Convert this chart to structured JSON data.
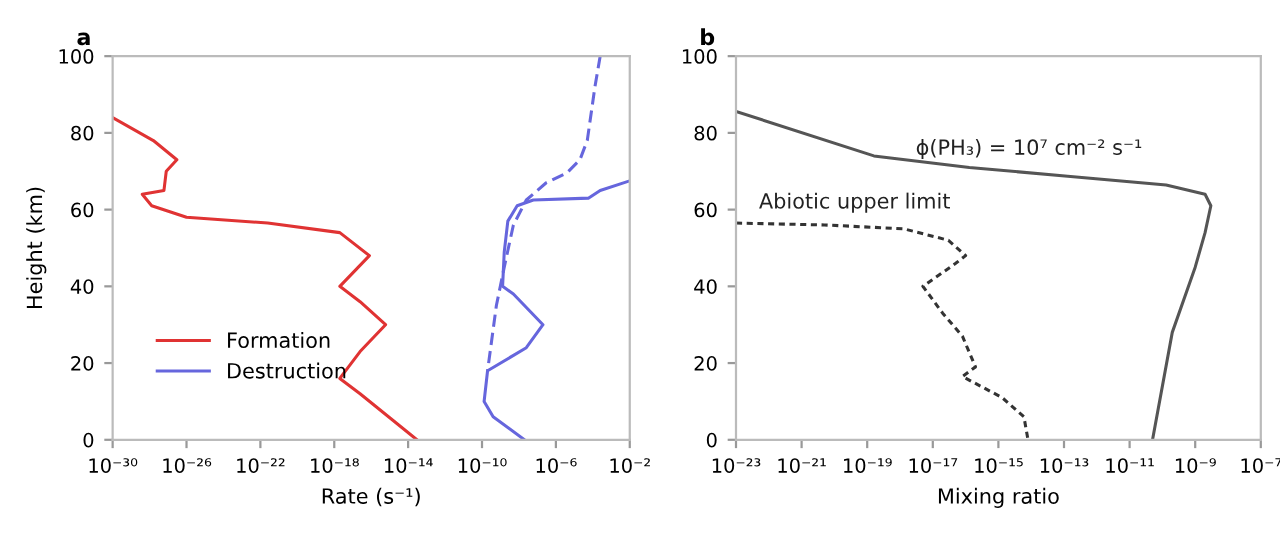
{
  "chart_data": [
    {
      "type": "line",
      "title": "a",
      "xlabel": "Rate (s⁻¹)",
      "ylabel": "Height (km)",
      "log": "x",
      "xlim": [
        1e-30,
        0.01
      ],
      "xticks": [
        {
          "value": 1e-30,
          "label": "10⁻³⁰"
        },
        {
          "value": 1e-26,
          "label": "10⁻²⁶"
        },
        {
          "value": 1e-22,
          "label": "10⁻²²"
        },
        {
          "value": 1e-18,
          "label": "10⁻¹⁸"
        },
        {
          "value": 1e-14,
          "label": "10⁻¹⁴"
        },
        {
          "value": 1e-10,
          "label": "10⁻¹⁰"
        },
        {
          "value": 1e-06,
          "label": "10⁻⁶"
        },
        {
          "value": 0.01,
          "label": "10⁻²"
        }
      ],
      "ylim": [
        0,
        100
      ],
      "yticks": [
        0,
        20,
        40,
        60,
        80,
        100
      ],
      "grid": false,
      "legend": "bottom left",
      "series": [
        {
          "name": "Formation",
          "color": "#e03333",
          "line_style": "solid",
          "x": [
            1e-30,
            1.6e-28,
            3e-27,
            8e-28,
            6e-28,
            4e-29,
            1.3e-28,
            1e-26,
            2.5e-22,
            2e-18,
            8e-17,
            2e-18,
            2.5e-17,
            6e-16,
            2.5e-17,
            2e-18,
            2.5e-17,
            3e-14
          ],
          "values": [
            84,
            78,
            73,
            70,
            65,
            64,
            61,
            58,
            56.5,
            54,
            48,
            40,
            36,
            30,
            23,
            16,
            12,
            0
          ]
        },
        {
          "name": "Destruction",
          "color": "#6666dd",
          "line_style": "solid",
          "x": [
            0.01,
            0.00025,
            6e-05,
            6e-08,
            8e-09,
            2.5e-09,
            1.6e-09,
            1.3e-09,
            5e-09,
            2e-07,
            2.5e-08,
            2e-10,
            1.3e-10,
            4e-10,
            2e-08
          ],
          "values": [
            67.5,
            65,
            63,
            62.5,
            61,
            57,
            49,
            40,
            38,
            30,
            24,
            18,
            10,
            6,
            0
          ]
        },
        {
          "color": "#6666dd",
          "line_style": "dashed",
          "x": [
            0.00025,
            0.00013,
            5e-05,
            2e-05,
            4e-06,
            3e-07,
            2.5e-08,
            5e-09,
            1.6e-09,
            6e-10,
            2e-10
          ],
          "values": [
            100,
            92,
            78,
            73,
            69.6,
            67,
            62.5,
            56,
            45,
            35,
            18
          ]
        }
      ]
    },
    {
      "type": "line",
      "title": "b",
      "xlabel": "Mixing ratio",
      "log": "x",
      "xlim": [
        1e-23,
        1e-07
      ],
      "xticks": [
        {
          "value": 1e-23,
          "label": "10⁻²³"
        },
        {
          "value": 1e-21,
          "label": "10⁻²¹"
        },
        {
          "value": 1e-19,
          "label": "10⁻¹⁹"
        },
        {
          "value": 1e-17,
          "label": "10⁻¹⁷"
        },
        {
          "value": 1e-15,
          "label": "10⁻¹⁵"
        },
        {
          "value": 1e-13,
          "label": "10⁻¹³"
        },
        {
          "value": 1e-11,
          "label": "10⁻¹¹"
        },
        {
          "value": 1e-09,
          "label": "10⁻⁹"
        },
        {
          "value": 1e-07,
          "label": "10⁻⁷"
        }
      ],
      "ylim": [
        0,
        100
      ],
      "yticks": [
        0,
        20,
        40,
        60,
        80,
        100
      ],
      "grid": false,
      "annotations": [
        {
          "text": "ϕ(PH₃) = 10⁷ cm⁻² s⁻¹",
          "x": 3e-18,
          "y": 71
        },
        {
          "text": "Abiotic upper limit",
          "x": 5e-23,
          "y": 57
        }
      ],
      "series": [
        {
          "color": "#555555",
          "line_style": "solid",
          "x": [
            1e-23,
            1.6e-19,
            1.3e-16,
            1.3e-13,
            1.3e-10,
            2e-09,
            3e-09,
            2e-09,
            1e-09,
            2e-10,
            5e-11
          ],
          "values": [
            85.6,
            74,
            71,
            68.7,
            66.4,
            64,
            61,
            54,
            45,
            28,
            0
          ]
        },
        {
          "color": "#333333",
          "line_style": "dotted",
          "x": [
            1e-23,
            5e-21,
            1.3e-18,
            3e-17,
            1e-16,
            5e-17,
            5e-18,
            2e-17,
            8e-17,
            2e-16,
            8e-17,
            1.3e-15,
            6e-15,
            8e-15
          ],
          "values": [
            56.5,
            56,
            55,
            52,
            48,
            46,
            40,
            33,
            27,
            19,
            16.5,
            11,
            6,
            0
          ]
        }
      ]
    }
  ]
}
